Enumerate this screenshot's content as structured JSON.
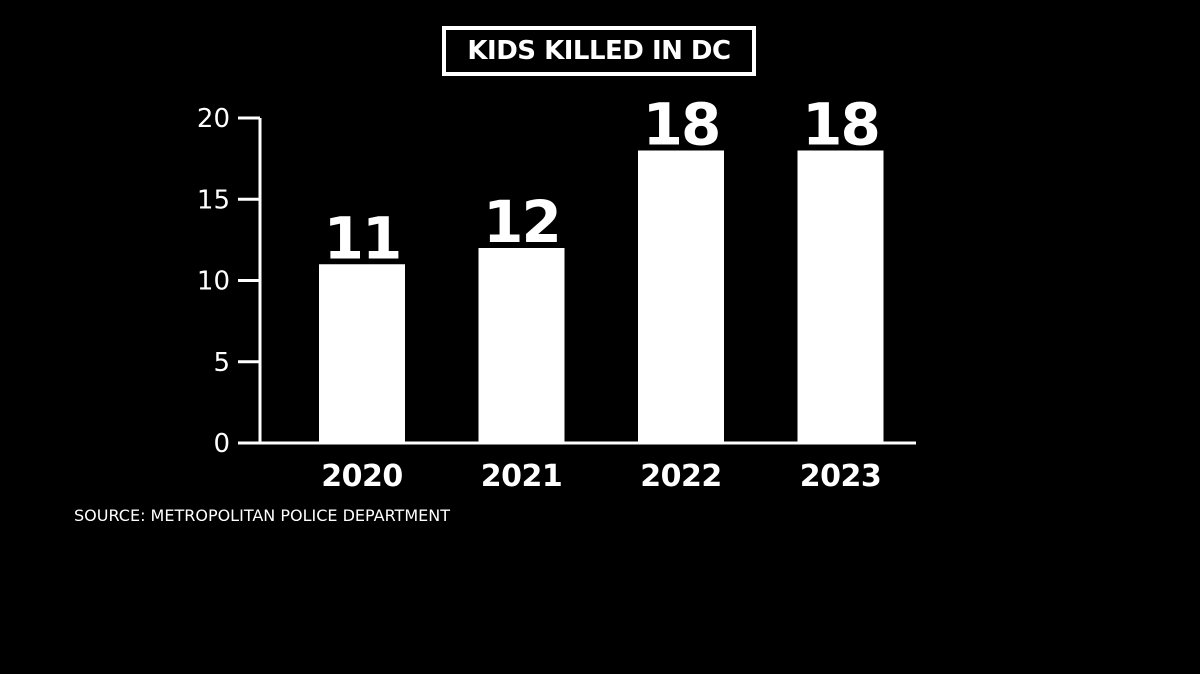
{
  "chart_data": {
    "type": "bar",
    "title": "KIDS KILLED IN DC",
    "categories": [
      "2020",
      "2021",
      "2022",
      "2023"
    ],
    "values": [
      11,
      12,
      18,
      18
    ],
    "data_labels": [
      "11",
      "12",
      "18",
      "18"
    ],
    "ylim": [
      0,
      20
    ],
    "yticks": [
      0,
      5,
      10,
      15,
      20
    ],
    "ytick_labels": [
      "0",
      "5",
      "10",
      "15",
      "20"
    ],
    "xlabel": "",
    "ylabel": "",
    "grid": false,
    "legend": "none",
    "colors": {
      "background": "#000000",
      "bars": "#ffffff",
      "axis": "#ffffff",
      "text": "#ffffff"
    }
  },
  "source_note": "SOURCE: METROPOLITAN POLICE DEPARTMENT"
}
